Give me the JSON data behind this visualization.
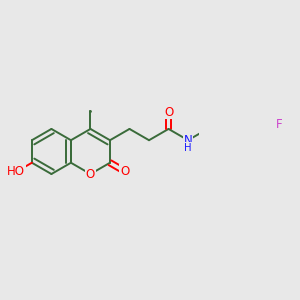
{
  "bg_color": "#e8e8e8",
  "bond_color": "#3a6b3a",
  "bond_width": 1.4,
  "dbo": 0.045,
  "atom_colors": {
    "O": "#ff0000",
    "N": "#1a1aff",
    "F": "#cc44cc",
    "C": "#3a6b3a"
  },
  "font_size": 8.5
}
